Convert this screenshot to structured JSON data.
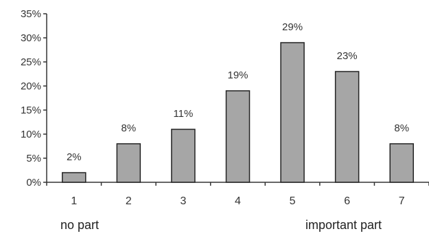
{
  "chart_data": {
    "type": "bar",
    "categories": [
      "1",
      "2",
      "3",
      "4",
      "5",
      "6",
      "7"
    ],
    "values": [
      2,
      8,
      11,
      19,
      29,
      23,
      8
    ],
    "data_labels": [
      "2%",
      "8%",
      "11%",
      "19%",
      "29%",
      "23%",
      "8%"
    ],
    "ylim": [
      0,
      35
    ],
    "yticks": [
      0,
      5,
      10,
      15,
      20,
      25,
      30,
      35
    ],
    "ytick_labels": [
      "0%",
      "5%",
      "10%",
      "15%",
      "20%",
      "25%",
      "30%",
      "35%"
    ],
    "grid": false,
    "legend": "none",
    "bar_color": "#a6a6a6",
    "bar_edge_color": "#222222",
    "axis_color": "#333333",
    "x_end_labels": {
      "left": "no part",
      "right": "important part"
    }
  }
}
